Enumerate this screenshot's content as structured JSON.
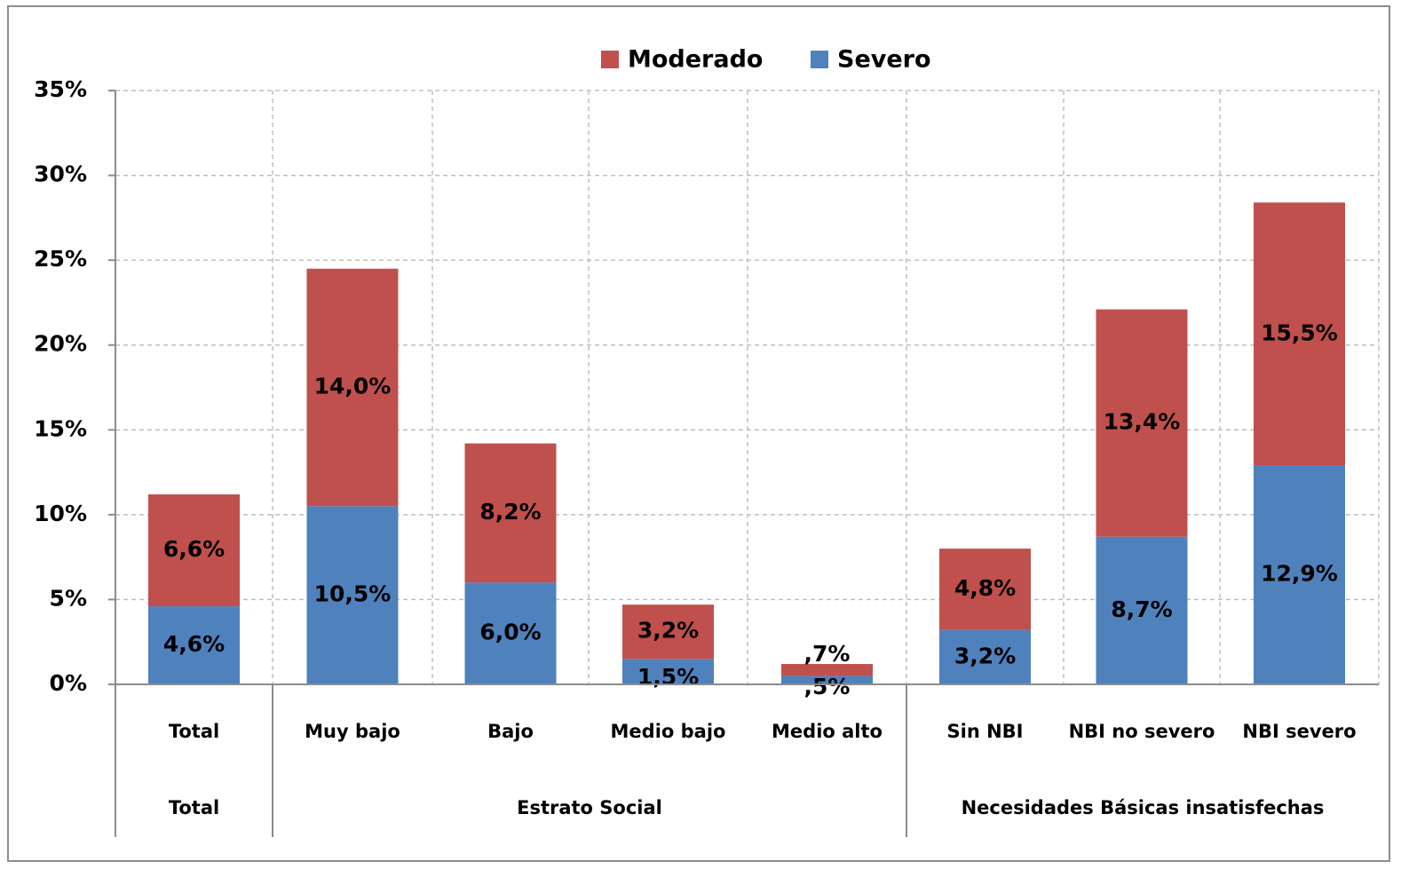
{
  "chart_data": {
    "type": "bar",
    "stacked": true,
    "categories": [
      "Total",
      "Muy bajo",
      "Bajo",
      "Medio bajo",
      "Medio alto",
      "Sin NBI",
      "NBI no severo",
      "NBI severo"
    ],
    "groups": [
      {
        "label": "Total",
        "categories": [
          "Total"
        ]
      },
      {
        "label": "Estrato Social",
        "categories": [
          "Muy bajo",
          "Bajo",
          "Medio bajo",
          "Medio alto"
        ]
      },
      {
        "label": "Necesidades Básicas insatisfechas",
        "categories": [
          "Sin NBI",
          "NBI no severo",
          "NBI severo"
        ]
      }
    ],
    "series": [
      {
        "name": "Severo",
        "color": "#4F81BD",
        "values": [
          4.6,
          10.5,
          6.0,
          1.5,
          0.5,
          3.2,
          8.7,
          12.9
        ],
        "labels": [
          "4,6%",
          "10,5%",
          "6,0%",
          "1,5%",
          ",5%",
          "3,2%",
          "8,7%",
          "12,9%"
        ]
      },
      {
        "name": "Moderado",
        "color": "#C0504D",
        "values": [
          6.6,
          14.0,
          8.2,
          3.2,
          0.7,
          4.8,
          13.4,
          15.5
        ],
        "labels": [
          "6,6%",
          "14,0%",
          "8,2%",
          "3,2%",
          ",7%",
          "4,8%",
          "13,4%",
          "15,5%"
        ]
      }
    ],
    "legend": {
      "position": "top",
      "order": [
        "Moderado",
        "Severo"
      ]
    },
    "yticks": [
      "0%",
      "5%",
      "10%",
      "15%",
      "20%",
      "25%",
      "30%",
      "35%"
    ],
    "ylim": [
      0,
      35
    ],
    "grid": true,
    "title": "",
    "xlabel": "",
    "ylabel": ""
  }
}
